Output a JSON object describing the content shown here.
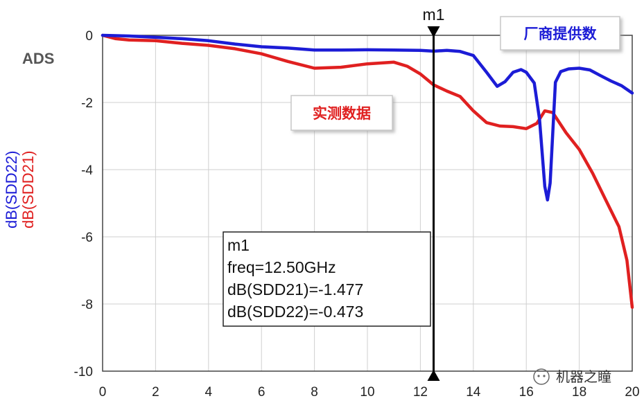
{
  "chart_data": {
    "type": "line",
    "ylabels": [
      "dB(SDD22)",
      "dB(SDD21)"
    ],
    "xlim": [
      0,
      20
    ],
    "ylim": [
      -10,
      0
    ],
    "x_ticks": [
      "0",
      "2",
      "4",
      "6",
      "8",
      "10",
      "12",
      "14",
      "16",
      "18",
      "20"
    ],
    "y_ticks": [
      "0",
      "-2",
      "-4",
      "-6",
      "-8",
      "-10"
    ],
    "grid": true,
    "series": [
      {
        "name": "dB(SDD22)",
        "color": "#1c1cd6",
        "points": [
          [
            0,
            0
          ],
          [
            1,
            -0.02
          ],
          [
            2,
            -0.06
          ],
          [
            3,
            -0.1
          ],
          [
            4,
            -0.16
          ],
          [
            5,
            -0.26
          ],
          [
            6,
            -0.34
          ],
          [
            7,
            -0.38
          ],
          [
            8,
            -0.44
          ],
          [
            9,
            -0.44
          ],
          [
            10,
            -0.43
          ],
          [
            11,
            -0.44
          ],
          [
            12,
            -0.45
          ],
          [
            12.5,
            -0.473
          ],
          [
            13,
            -0.45
          ],
          [
            13.5,
            -0.48
          ],
          [
            14,
            -0.6
          ],
          [
            14.5,
            -1.1
          ],
          [
            14.9,
            -1.52
          ],
          [
            15.2,
            -1.38
          ],
          [
            15.5,
            -1.1
          ],
          [
            15.8,
            -1.02
          ],
          [
            16,
            -1.1
          ],
          [
            16.3,
            -1.42
          ],
          [
            16.5,
            -2.5
          ],
          [
            16.7,
            -4.5
          ],
          [
            16.8,
            -4.9
          ],
          [
            16.9,
            -4.4
          ],
          [
            17.1,
            -1.4
          ],
          [
            17.3,
            -1.08
          ],
          [
            17.6,
            -1.0
          ],
          [
            18,
            -0.98
          ],
          [
            18.4,
            -1.03
          ],
          [
            18.8,
            -1.2
          ],
          [
            19.2,
            -1.36
          ],
          [
            19.6,
            -1.5
          ],
          [
            20,
            -1.72
          ]
        ]
      },
      {
        "name": "dB(SDD21)",
        "color": "#e02020",
        "points": [
          [
            0,
            0
          ],
          [
            0.5,
            -0.1
          ],
          [
            1,
            -0.14
          ],
          [
            2,
            -0.16
          ],
          [
            3,
            -0.24
          ],
          [
            4,
            -0.3
          ],
          [
            5,
            -0.4
          ],
          [
            6,
            -0.55
          ],
          [
            7,
            -0.78
          ],
          [
            8,
            -0.98
          ],
          [
            9,
            -0.95
          ],
          [
            10,
            -0.85
          ],
          [
            11,
            -0.8
          ],
          [
            11.5,
            -0.92
          ],
          [
            12,
            -1.15
          ],
          [
            12.5,
            -1.477
          ],
          [
            13,
            -1.66
          ],
          [
            13.5,
            -1.82
          ],
          [
            14,
            -2.25
          ],
          [
            14.5,
            -2.6
          ],
          [
            15,
            -2.7
          ],
          [
            15.5,
            -2.72
          ],
          [
            16,
            -2.78
          ],
          [
            16.4,
            -2.62
          ],
          [
            16.7,
            -2.25
          ],
          [
            17,
            -2.3
          ],
          [
            17.5,
            -2.9
          ],
          [
            18,
            -3.4
          ],
          [
            18.5,
            -4.1
          ],
          [
            19,
            -4.9
          ],
          [
            19.5,
            -5.7
          ],
          [
            19.8,
            -6.7
          ],
          [
            20,
            -8.1
          ]
        ]
      }
    ],
    "marker": {
      "name": "m1",
      "x": 12.5,
      "lines": [
        "m1",
        "freq=12.50GHz",
        "dB(SDD21)=-1.477",
        "dB(SDD22)=-0.473"
      ]
    },
    "annotations": {
      "vendor_label": "厂商提供数",
      "measured_label": "实测数据",
      "ads_label": "ADS"
    }
  },
  "watermark": "机器之瞳"
}
